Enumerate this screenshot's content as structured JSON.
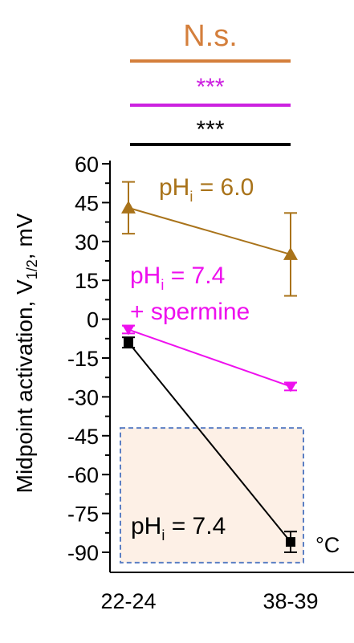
{
  "chart_data": {
    "type": "line",
    "ylabel_main": "Midpoint activation, V",
    "ylabel_sub": "1/2",
    "ylabel_tail": ", mV",
    "x_unit": "°C",
    "categories": [
      "22-24",
      "38-39"
    ],
    "yticks": [
      60,
      45,
      30,
      15,
      0,
      -15,
      -30,
      -45,
      -60,
      -75,
      -90
    ],
    "ylim": [
      -90,
      60
    ],
    "series": [
      {
        "key": "ph6",
        "label_main": "pH",
        "label_sub": "i",
        "label_tail": " = 6.0",
        "color": "#A9731A",
        "marker": "triangle-up",
        "values": [
          43,
          25
        ],
        "err": [
          10,
          16
        ]
      },
      {
        "key": "ph74_sperm",
        "label_main": "pH",
        "label_sub": "i",
        "label_tail": " = 7.4",
        "label_line2": "+ spermine",
        "color": "#EE10EE",
        "marker": "triangle-down",
        "values": [
          -4,
          -26
        ],
        "err": [
          1.5,
          1.5
        ]
      },
      {
        "key": "ph74",
        "label_main": "pH",
        "label_sub": "i",
        "label_tail": " = 7.4",
        "color": "#000000",
        "marker": "square",
        "values": [
          -9,
          -86
        ],
        "err": [
          2,
          4
        ]
      }
    ],
    "significance": [
      {
        "text": "N.s.",
        "color": "#D47F3C"
      },
      {
        "text": "***",
        "color": "#CC22E0"
      },
      {
        "text": "***",
        "color": "#000000"
      }
    ],
    "shaded_region": {
      "y_from": -42,
      "y_to": -94,
      "fill": "#FDF0E6",
      "stroke": "#5B7FC4"
    }
  }
}
